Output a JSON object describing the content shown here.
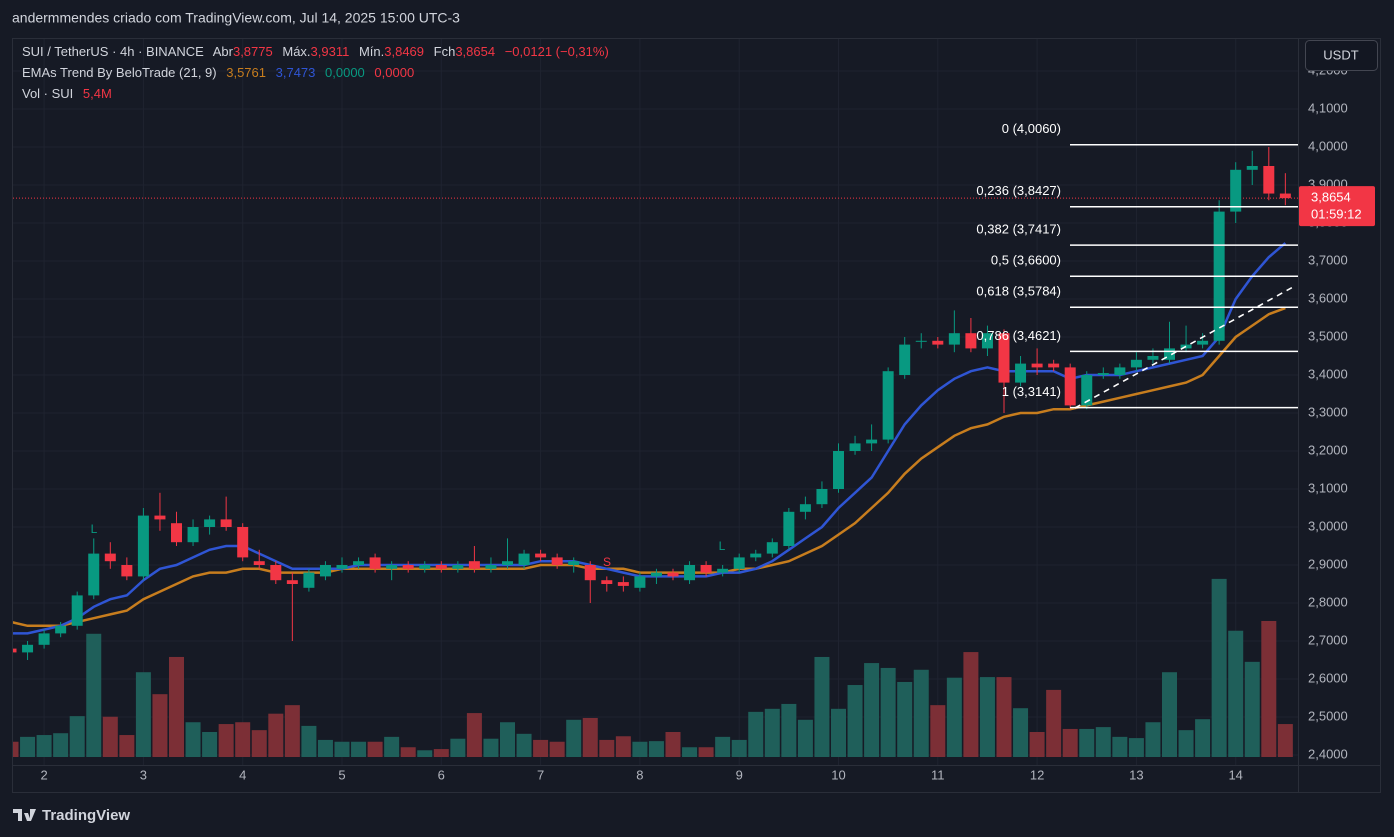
{
  "header": "andermmendes criado com TradingView.com, Jul 14, 2025 15:00 UTC-3",
  "legend": {
    "symbol": "SUI / TetherUS · 4h · BINANCE",
    "ohlc_labels": [
      "Abr",
      "Máx.",
      "Mín.",
      "Fch"
    ],
    "ohlc_values": [
      "3,8775",
      "3,9311",
      "3,8469",
      "3,8654"
    ],
    "change": "−0,0121 (−0,31%)",
    "indicator": "EMAs Trend By BeloTrade (21, 9)",
    "indicator_values": [
      "3,5761",
      "3,7473",
      "0,0000",
      "0,0000"
    ],
    "volume_title": "Vol · SUI",
    "volume_value": "5,4M"
  },
  "currency_button": "USDT",
  "footer": "TradingView",
  "chart_data": {
    "type": "candlestick",
    "categories": [
      null,
      null,
      "2",
      null,
      null,
      null,
      null,
      null,
      "3",
      null,
      null,
      null,
      null,
      null,
      "4",
      null,
      null,
      null,
      null,
      null,
      "5",
      null,
      null,
      null,
      null,
      null,
      "6",
      null,
      null,
      null,
      null,
      null,
      "7",
      null,
      null,
      null,
      null,
      null,
      "8",
      null,
      null,
      null,
      null,
      null,
      "9",
      null,
      null,
      null,
      null,
      null,
      "10",
      null,
      null,
      null,
      null,
      null,
      "11",
      null,
      null,
      null,
      null,
      null,
      "12",
      null,
      null,
      null,
      null,
      null,
      "13",
      null,
      null,
      null,
      null,
      null,
      "14",
      null,
      null,
      null
    ],
    "open": [
      2.68,
      2.67,
      2.69,
      2.72,
      2.74,
      2.82,
      2.93,
      2.9,
      2.87,
      3.03,
      3.01,
      2.96,
      3.0,
      3.02,
      3.0,
      2.91,
      2.9,
      2.86,
      2.84,
      2.87,
      2.89,
      2.9,
      2.92,
      2.89,
      2.9,
      2.89,
      2.9,
      2.89,
      2.91,
      2.89,
      2.9,
      2.9,
      2.93,
      2.92,
      2.9,
      2.9,
      2.86,
      2.855,
      2.84,
      2.87,
      2.88,
      2.86,
      2.9,
      2.88,
      2.89,
      2.92,
      2.93,
      2.95,
      3.04,
      3.06,
      3.1,
      3.2,
      3.22,
      3.23,
      3.4,
      3.49,
      3.49,
      3.48,
      3.51,
      3.47,
      3.51,
      3.38,
      3.43,
      3.43,
      3.42,
      3.32,
      3.4,
      3.4,
      3.42,
      3.44,
      3.44,
      3.47,
      3.48,
      3.49,
      3.83,
      3.94,
      3.95,
      3.8775
    ],
    "high": [
      2.69,
      2.7,
      2.73,
      2.75,
      2.83,
      2.97,
      2.96,
      2.92,
      3.05,
      3.09,
      3.04,
      3.02,
      3.03,
      3.08,
      3.01,
      2.94,
      2.91,
      2.88,
      2.89,
      2.91,
      2.92,
      2.92,
      2.93,
      2.91,
      2.91,
      2.91,
      2.91,
      2.91,
      2.95,
      2.92,
      2.97,
      2.94,
      2.94,
      2.93,
      2.92,
      2.91,
      2.87,
      2.87,
      2.88,
      2.89,
      2.89,
      2.91,
      2.91,
      2.9,
      2.93,
      2.94,
      2.97,
      3.05,
      3.08,
      3.12,
      3.22,
      3.24,
      3.27,
      3.42,
      3.5,
      3.51,
      3.5,
      3.57,
      3.55,
      3.53,
      3.52,
      3.45,
      3.47,
      3.44,
      3.43,
      3.41,
      3.42,
      3.43,
      3.46,
      3.47,
      3.54,
      3.53,
      3.51,
      3.86,
      3.96,
      3.99,
      4.0,
      3.9311
    ],
    "low": [
      2.66,
      2.65,
      2.68,
      2.71,
      2.73,
      2.81,
      2.89,
      2.86,
      2.86,
      2.99,
      2.95,
      2.95,
      2.98,
      2.99,
      2.91,
      2.89,
      2.85,
      2.7,
      2.83,
      2.86,
      2.88,
      2.89,
      2.88,
      2.86,
      2.88,
      2.88,
      2.88,
      2.88,
      2.88,
      2.88,
      2.89,
      2.89,
      2.91,
      2.89,
      2.88,
      2.8,
      2.83,
      2.83,
      2.83,
      2.85,
      2.86,
      2.85,
      2.87,
      2.87,
      2.88,
      2.91,
      2.92,
      2.94,
      3.02,
      3.05,
      3.09,
      3.19,
      3.2,
      3.22,
      3.39,
      3.47,
      3.47,
      3.46,
      3.46,
      3.45,
      3.3,
      3.37,
      3.4,
      3.41,
      3.31,
      3.31,
      3.39,
      3.39,
      3.41,
      3.43,
      3.43,
      3.46,
      3.47,
      3.48,
      3.8,
      3.9,
      3.86,
      3.8469
    ],
    "close": [
      2.67,
      2.69,
      2.72,
      2.74,
      2.82,
      2.93,
      2.91,
      2.87,
      3.03,
      3.02,
      2.96,
      3.0,
      3.02,
      3.0,
      2.92,
      2.9,
      2.86,
      2.85,
      2.88,
      2.9,
      2.9,
      2.91,
      2.89,
      2.9,
      2.89,
      2.9,
      2.89,
      2.9,
      2.89,
      2.9,
      2.91,
      2.93,
      2.92,
      2.9,
      2.91,
      2.86,
      2.85,
      2.845,
      2.87,
      2.88,
      2.87,
      2.9,
      2.88,
      2.89,
      2.92,
      2.93,
      2.96,
      3.04,
      3.06,
      3.1,
      3.2,
      3.22,
      3.23,
      3.41,
      3.48,
      3.49,
      3.48,
      3.51,
      3.47,
      3.51,
      3.38,
      3.43,
      3.42,
      3.42,
      3.32,
      3.4,
      3.405,
      3.42,
      3.44,
      3.45,
      3.47,
      3.48,
      3.49,
      3.83,
      3.94,
      3.95,
      3.8775,
      3.8654
    ],
    "volume": [
      2.5,
      3.3,
      3.6,
      3.9,
      6.7,
      20.2,
      6.6,
      3.6,
      13.9,
      10.3,
      16.4,
      5.7,
      4.1,
      5.4,
      5.7,
      4.4,
      7.1,
      8.5,
      5.1,
      2.8,
      2.5,
      2.5,
      2.5,
      3.3,
      1.6,
      1.1,
      1.3,
      3.0,
      7.2,
      3.0,
      5.7,
      3.8,
      2.8,
      2.5,
      6.1,
      6.4,
      2.8,
      3.4,
      2.5,
      2.6,
      4.1,
      1.6,
      1.6,
      3.3,
      2.8,
      7.4,
      7.9,
      8.7,
      6.1,
      16.4,
      7.9,
      11.8,
      15.4,
      14.6,
      12.3,
      14.3,
      8.5,
      13.0,
      17.2,
      13.1,
      13.1,
      8.0,
      4.1,
      11.0,
      4.6,
      4.6,
      4.9,
      3.3,
      3.1,
      5.7,
      13.9,
      4.4,
      6.2,
      29.2,
      20.7,
      15.6,
      22.3,
      5.4
    ],
    "up_color": "#089981",
    "down_color": "#f23645",
    "volume_up_color": "#1f5f5a",
    "volume_down_color": "#7c2f36",
    "ema_lines": [
      {
        "color": "#c77d1e",
        "values": [
          2.75,
          2.74,
          2.74,
          2.74,
          2.75,
          2.76,
          2.77,
          2.78,
          2.81,
          2.83,
          2.85,
          2.87,
          2.88,
          2.88,
          2.89,
          2.89,
          2.88,
          2.88,
          2.88,
          2.88,
          2.89,
          2.89,
          2.89,
          2.89,
          2.89,
          2.89,
          2.89,
          2.89,
          2.89,
          2.89,
          2.89,
          2.89,
          2.9,
          2.9,
          2.9,
          2.89,
          2.89,
          2.89,
          2.88,
          2.88,
          2.88,
          2.88,
          2.88,
          2.88,
          2.89,
          2.89,
          2.9,
          2.91,
          2.93,
          2.95,
          2.98,
          3.01,
          3.05,
          3.09,
          3.14,
          3.18,
          3.21,
          3.24,
          3.26,
          3.27,
          3.29,
          3.3,
          3.3,
          3.31,
          3.31,
          3.32,
          3.33,
          3.34,
          3.35,
          3.36,
          3.37,
          3.38,
          3.4,
          3.45,
          3.5,
          3.53,
          3.56,
          3.5761
        ]
      },
      {
        "color": "#2f55d4",
        "values": [
          2.72,
          2.72,
          2.73,
          2.74,
          2.76,
          2.79,
          2.81,
          2.82,
          2.86,
          2.89,
          2.9,
          2.92,
          2.94,
          2.95,
          2.95,
          2.93,
          2.91,
          2.89,
          2.89,
          2.89,
          2.89,
          2.9,
          2.9,
          2.9,
          2.9,
          2.9,
          2.9,
          2.9,
          2.9,
          2.9,
          2.9,
          2.9,
          2.91,
          2.91,
          2.91,
          2.9,
          2.89,
          2.88,
          2.87,
          2.87,
          2.87,
          2.87,
          2.87,
          2.88,
          2.88,
          2.89,
          2.91,
          2.94,
          2.97,
          3.0,
          3.05,
          3.09,
          3.13,
          3.2,
          3.27,
          3.32,
          3.36,
          3.39,
          3.41,
          3.42,
          3.41,
          3.41,
          3.41,
          3.41,
          3.39,
          3.4,
          3.4,
          3.4,
          3.41,
          3.42,
          3.43,
          3.44,
          3.45,
          3.5,
          3.6,
          3.66,
          3.71,
          3.7473
        ]
      }
    ],
    "fib_levels": [
      {
        "value": 4.006,
        "label": "0 (4,0060)"
      },
      {
        "value": 3.8427,
        "label": "0,236 (3,8427)"
      },
      {
        "value": 3.7417,
        "label": "0,382 (3,7417)"
      },
      {
        "value": 3.66,
        "label": "0,5 (3,6600)"
      },
      {
        "value": 3.5784,
        "label": "0,618 (3,5784)"
      },
      {
        "value": 3.4621,
        "label": "0,786 (3,4621)"
      },
      {
        "value": 3.3141,
        "label": "1 (3,3141)"
      }
    ],
    "signals": [
      "L",
      "S",
      "L"
    ],
    "last_price": {
      "value": 3.8654,
      "label": "3,8654"
    },
    "countdown": "01:59:12",
    "ylim": [
      2.4,
      4.2
    ],
    "yticks": [
      {
        "value": 2.4,
        "label": "2,4000"
      },
      {
        "value": 2.5,
        "label": "2,5000"
      },
      {
        "value": 2.6,
        "label": "2,6000"
      },
      {
        "value": 2.7,
        "label": "2,7000"
      },
      {
        "value": 2.8,
        "label": "2,8000"
      },
      {
        "value": 2.9,
        "label": "2,9000"
      },
      {
        "value": 3,
        "label": "3,0000"
      },
      {
        "value": 3.1,
        "label": "3,1000"
      },
      {
        "value": 3.2,
        "label": "3,2000"
      },
      {
        "value": 3.3,
        "label": "3,3000"
      },
      {
        "value": 3.4,
        "label": "3,4000"
      },
      {
        "value": 3.5,
        "label": "3,5000"
      },
      {
        "value": 3.6,
        "label": "3,6000"
      },
      {
        "value": 3.7,
        "label": "3,7000"
      },
      {
        "value": 3.8,
        "label": "3,8000"
      },
      {
        "value": 3.9,
        "label": "3,9000"
      },
      {
        "value": 4,
        "label": "4,0000"
      },
      {
        "value": 4.1,
        "label": "4,1000"
      },
      {
        "value": 4.2,
        "label": "4,2000"
      }
    ],
    "grid": true
  }
}
